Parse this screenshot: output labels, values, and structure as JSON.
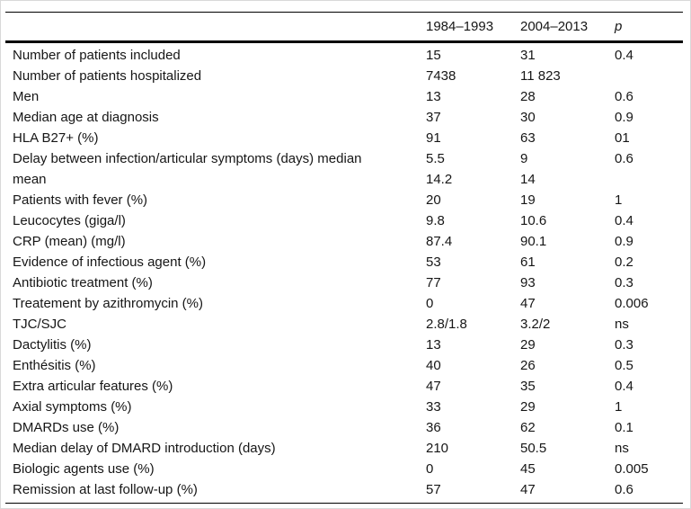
{
  "colors": {
    "text": "#161616",
    "background": "#ffffff",
    "rule": "#000000"
  },
  "table": {
    "columns": [
      "",
      "1984–1993",
      "2004–2013",
      "p"
    ],
    "rows": [
      {
        "label": "Number of patients included",
        "v1": "15",
        "v2": "31",
        "p": "0.4"
      },
      {
        "label": "Number of patients hospitalized",
        "v1": "7438",
        "v2": "11 823",
        "p": ""
      },
      {
        "label": "Men",
        "v1": "13",
        "v2": "28",
        "p": "0.6"
      },
      {
        "label": "Median age at diagnosis",
        "v1": "37",
        "v2": "30",
        "p": "0.9"
      },
      {
        "label": "HLA B27+ (%)",
        "v1": "91",
        "v2": "63",
        "p": "01"
      },
      {
        "label": "Delay between infection/articular symptoms (days) median",
        "v1": "5.5",
        "v2": "9",
        "p": "0.6"
      },
      {
        "label": "mean",
        "v1": "14.2",
        "v2": "14",
        "p": ""
      },
      {
        "label": "Patients with fever (%)",
        "v1": "20",
        "v2": "19",
        "p": "1"
      },
      {
        "label": "Leucocytes (giga/l)",
        "v1": "9.8",
        "v2": "10.6",
        "p": "0.4"
      },
      {
        "label": "CRP (mean) (mg/l)",
        "v1": "87.4",
        "v2": "90.1",
        "p": "0.9"
      },
      {
        "label": "Evidence of infectious agent (%)",
        "v1": "53",
        "v2": "61",
        "p": "0.2"
      },
      {
        "label": "Antibiotic treatment (%)",
        "v1": "77",
        "v2": "93",
        "p": "0.3"
      },
      {
        "label": "Treatement by azithromycin (%)",
        "v1": "0",
        "v2": "47",
        "p": "0.006"
      },
      {
        "label": "TJC/SJC",
        "v1": "2.8/1.8",
        "v2": "3.2/2",
        "p": "ns"
      },
      {
        "label": "Dactylitis (%)",
        "v1": "13",
        "v2": "29",
        "p": "0.3"
      },
      {
        "label": "Enthésitis (%)",
        "v1": "40",
        "v2": "26",
        "p": "0.5"
      },
      {
        "label": "Extra articular features (%)",
        "v1": "47",
        "v2": "35",
        "p": "0.4"
      },
      {
        "label": "Axial symptoms (%)",
        "v1": "33",
        "v2": "29",
        "p": "1"
      },
      {
        "label": "DMARDs use (%)",
        "v1": "36",
        "v2": "62",
        "p": "0.1"
      },
      {
        "label": "Median delay of DMARD introduction (days)",
        "v1": "210",
        "v2": "50.5",
        "p": "ns"
      },
      {
        "label": "Biologic agents use (%)",
        "v1": "0",
        "v2": "45",
        "p": "0.005"
      },
      {
        "label": "Remission at last follow-up (%)",
        "v1": "57",
        "v2": "47",
        "p": "0.6"
      }
    ]
  }
}
